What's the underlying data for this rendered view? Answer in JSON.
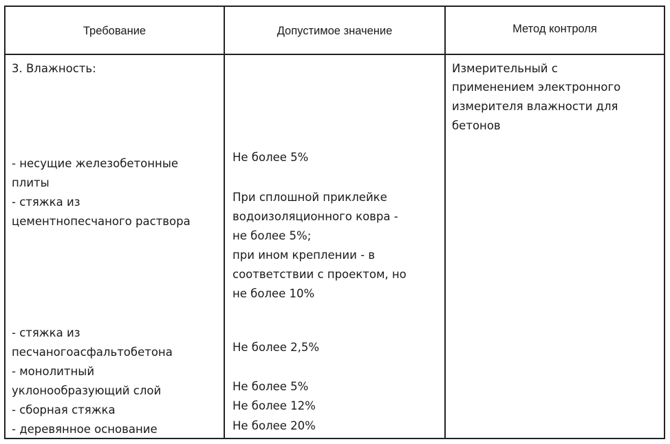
{
  "header": {
    "col1": "Требование",
    "col2": "Допустимое значение",
    "col3": "Метод контроля"
  },
  "row": {
    "requirement": {
      "title": "3. Влажность:",
      "lines": [
        "- несущие железобетонные",
        "плиты",
        "- стяжка из",
        "цементнопесчаного раствора",
        "- стяжка из",
        "песчаногоасфальтобетона",
        "- монолитный",
        "уклонообразующий слой",
        "- сборная стяжка",
        "- деревянное основание"
      ]
    },
    "value": {
      "lines": [
        "Не более 5%",
        "При сплошной приклейке",
        "водоизоляционного ковра -",
        "не более 5%;",
        "при ином креплении - в",
        "соответствии с проектом, но",
        "не более 10%",
        "Не более 2,5%",
        "Не более 5%",
        "Не более 12%",
        "Не более 20%"
      ]
    },
    "method": {
      "lines": [
        "Измерительный с",
        "применением электронного",
        "измерителя влажности для",
        "бетонов"
      ]
    }
  }
}
